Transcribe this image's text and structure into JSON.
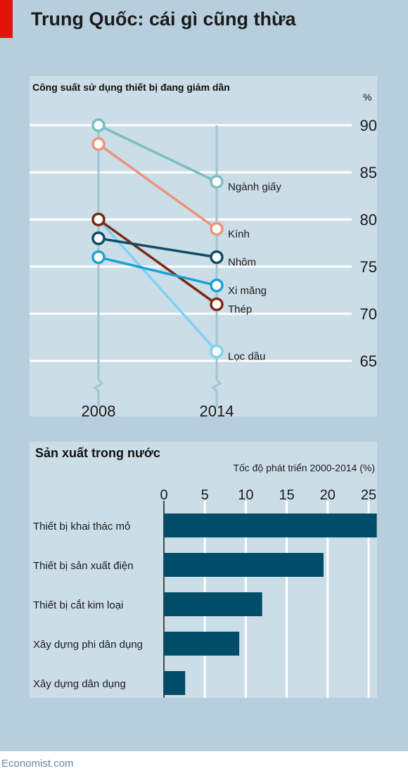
{
  "title": "Trung Quốc: cái gì cũng thừa",
  "footer": "Economist.com",
  "colors": {
    "background": "#b7cfdd",
    "panel": "#cbdde7",
    "accent": "#e3120b",
    "bar": "#004d6a"
  },
  "chart_data": [
    {
      "type": "line",
      "title": "Công suất sử dụng thiết bị đang giảm dần",
      "ylabel": "%",
      "x": [
        "2008",
        "2014"
      ],
      "ylim": [
        65,
        90
      ],
      "yticks": [
        90,
        85,
        80,
        75,
        70,
        65
      ],
      "axis_break": true,
      "series": [
        {
          "name": "Ngành giấy",
          "values": [
            90,
            84
          ],
          "color": "#79bfbf"
        },
        {
          "name": "Kính",
          "values": [
            88,
            79
          ],
          "color": "#ec9378"
        },
        {
          "name": "Nhôm",
          "values": [
            78,
            76
          ],
          "color": "#0d4d66"
        },
        {
          "name": "Xi măng",
          "values": [
            76,
            73
          ],
          "color": "#1aa1d7"
        },
        {
          "name": "Thép",
          "values": [
            80,
            71
          ],
          "color": "#7a2a12"
        },
        {
          "name": "Lọc dầu",
          "values": [
            80,
            66
          ],
          "color": "#7fd1f2"
        }
      ]
    },
    {
      "type": "bar",
      "orientation": "horizontal",
      "title": "Sản xuất trong nước",
      "xlabel": "Tốc độ phát triển 2000-2014 (%)",
      "xlim": [
        0,
        26
      ],
      "xticks": [
        0,
        5,
        10,
        15,
        20,
        25
      ],
      "categories": [
        "Thiết bị khai thác mỏ",
        "Thiết bị sản xuất điện",
        "Thiết bị cắt kim loại",
        "Xây dựng phi dân dụng",
        "Xây dựng dân dụng"
      ],
      "values": [
        26,
        19.5,
        12,
        9.2,
        2.6
      ],
      "color": "#004d6a"
    }
  ]
}
